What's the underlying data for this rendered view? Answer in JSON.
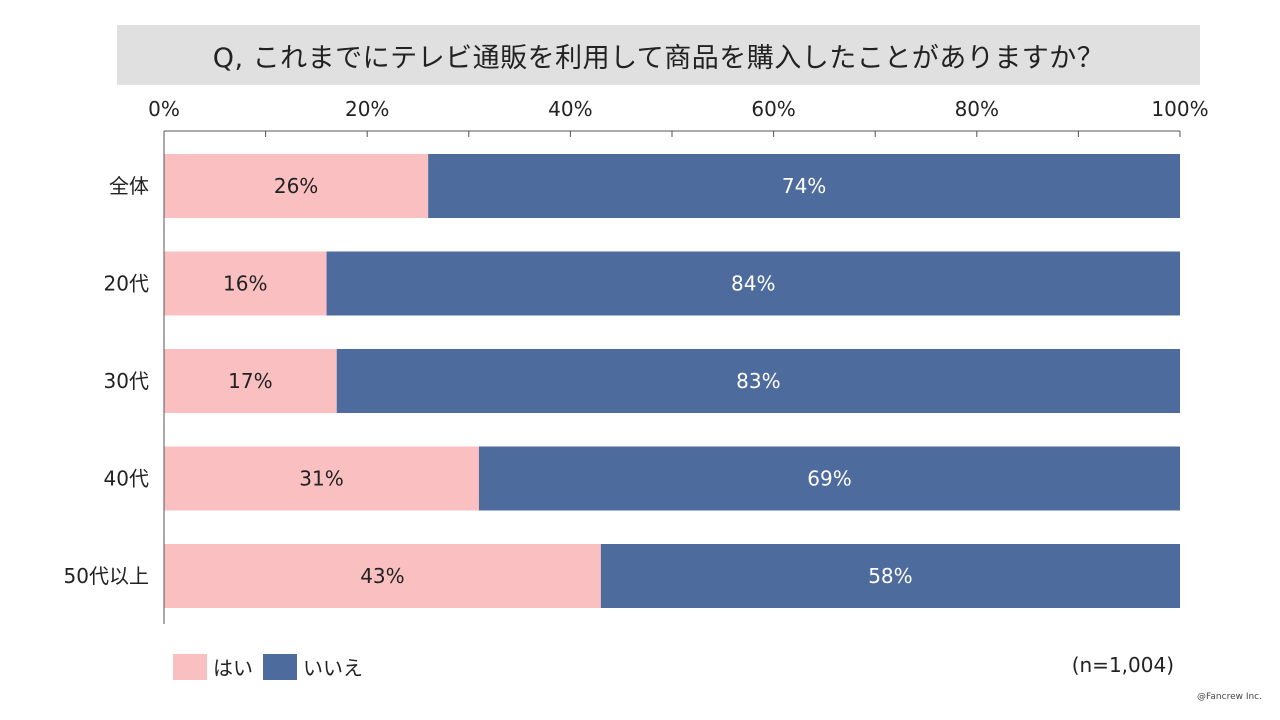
{
  "title": "Q, これまでにテレビ通販を利用して商品を購入したことがありますか？",
  "chart_data": {
    "type": "bar",
    "orientation": "horizontal",
    "stacked": true,
    "categories": [
      "全体",
      "20代",
      "30代",
      "40代",
      "50代以上"
    ],
    "series": [
      {
        "name": "はい",
        "values": [
          26,
          16,
          17,
          31,
          43
        ],
        "labels": [
          "26%",
          "16%",
          "17%",
          "31%",
          "43%"
        ],
        "color": "#f9bfc1",
        "label_color": "#222222"
      },
      {
        "name": "いいえ",
        "values": [
          74,
          84,
          83,
          69,
          58
        ],
        "labels": [
          "74%",
          "84%",
          "83%",
          "69%",
          "58%"
        ],
        "color": "#4d6b9c",
        "label_color": "#ffffff"
      }
    ],
    "xlim": [
      0,
      100
    ],
    "x_ticks": [
      0,
      20,
      40,
      60,
      80,
      100
    ],
    "x_tick_labels": [
      "0%",
      "20%",
      "40%",
      "60%",
      "80%",
      "100%"
    ],
    "x_axis_position": "top",
    "legend_position": "bottom-left",
    "grid": false
  },
  "legend": {
    "items": [
      {
        "label": "はい",
        "color": "#f9bfc1"
      },
      {
        "label": "いいえ",
        "color": "#4d6b9c"
      }
    ]
  },
  "sample_note": "(n=1,004)",
  "copyright": "@Fancrew Inc."
}
